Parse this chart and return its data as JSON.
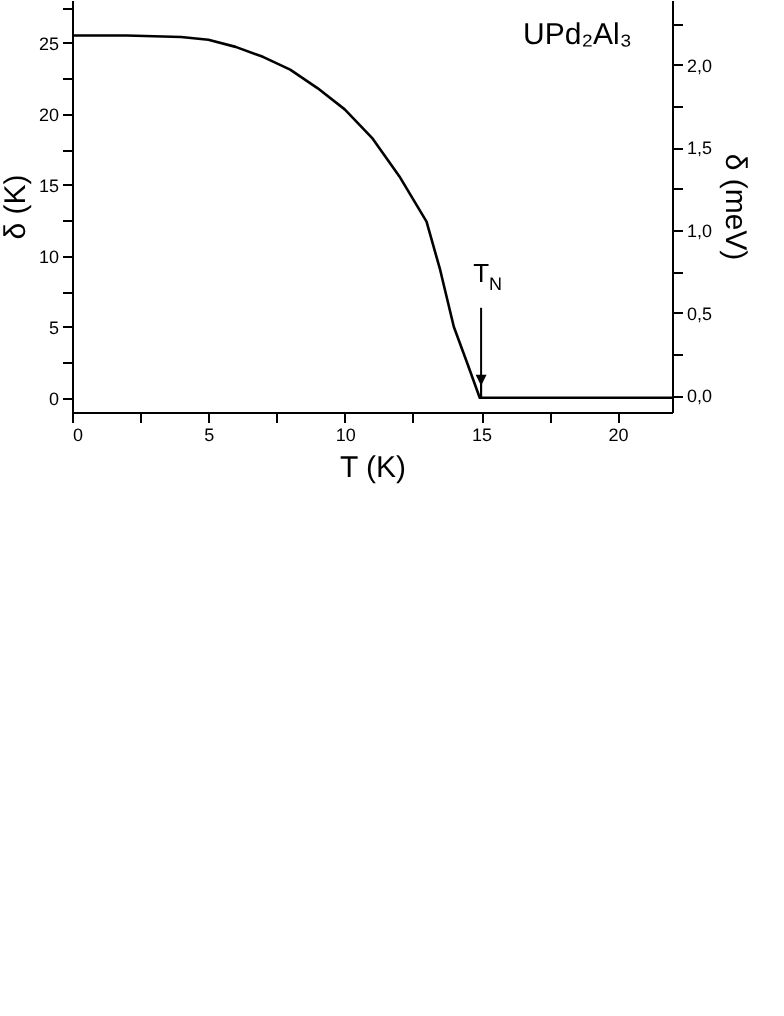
{
  "chart_data": {
    "type": "line",
    "xlabel": "T (K)",
    "ylabel": "δ (K)",
    "y2label": "δ (meV)",
    "x": [
      0,
      2,
      4,
      5,
      6,
      7,
      8,
      9,
      10,
      11,
      12,
      12.5,
      13,
      13.5,
      14,
      14.5,
      14.95,
      16,
      18,
      20,
      22
    ],
    "series": [
      {
        "color": "#000000",
        "values": [
          25.5,
          25.5,
          25.4,
          25.2,
          24.7,
          24.0,
          23.1,
          21.8,
          20.3,
          18.3,
          15.6,
          14.0,
          12.4,
          9.0,
          5.0,
          2.4,
          0,
          0,
          0,
          0,
          0
        ]
      }
    ],
    "xlim": [
      0,
      22
    ],
    "ylim": [
      -1,
      28
    ],
    "y2lim": [
      -0.1,
      2.39
    ],
    "xticks": [
      0,
      {
        "value": 2.5,
        "label": null
      },
      5,
      {
        "value": 7.5,
        "label": null
      },
      10,
      {
        "value": 12.5,
        "label": null
      },
      15,
      {
        "value": 17.5,
        "label": null
      },
      20
    ],
    "yticks": [
      0,
      {
        "value": 2.5,
        "label": null
      },
      5,
      {
        "value": 7.5,
        "label": null
      },
      10,
      {
        "value": 12.5,
        "label": null
      },
      15,
      {
        "value": 17.5,
        "label": null
      },
      20,
      {
        "value": 22.5,
        "label": null
      },
      25,
      {
        "value": 27.5,
        "label": null
      }
    ],
    "y2ticks": [
      {
        "value": 0,
        "label": "0,0"
      },
      {
        "value": 0.25,
        "label": null
      },
      {
        "value": 0.5,
        "label": "0,5"
      },
      {
        "value": 0.75,
        "label": null
      },
      {
        "value": 1,
        "label": "1,0"
      },
      {
        "value": 1.25,
        "label": null
      },
      {
        "value": 1.5,
        "label": "1,5"
      },
      {
        "value": 1.75,
        "label": null
      },
      {
        "value": 2,
        "label": "2,0"
      },
      {
        "value": 2.25,
        "label": null
      }
    ],
    "annotations": [
      "UPd₂Al₃",
      {
        "text": "T$_{N}$",
        "x": 15,
        "y": 0
      }
    ],
    "grid": false,
    "legend": false,
    "marker": "none",
    "line_style": "solid"
  }
}
